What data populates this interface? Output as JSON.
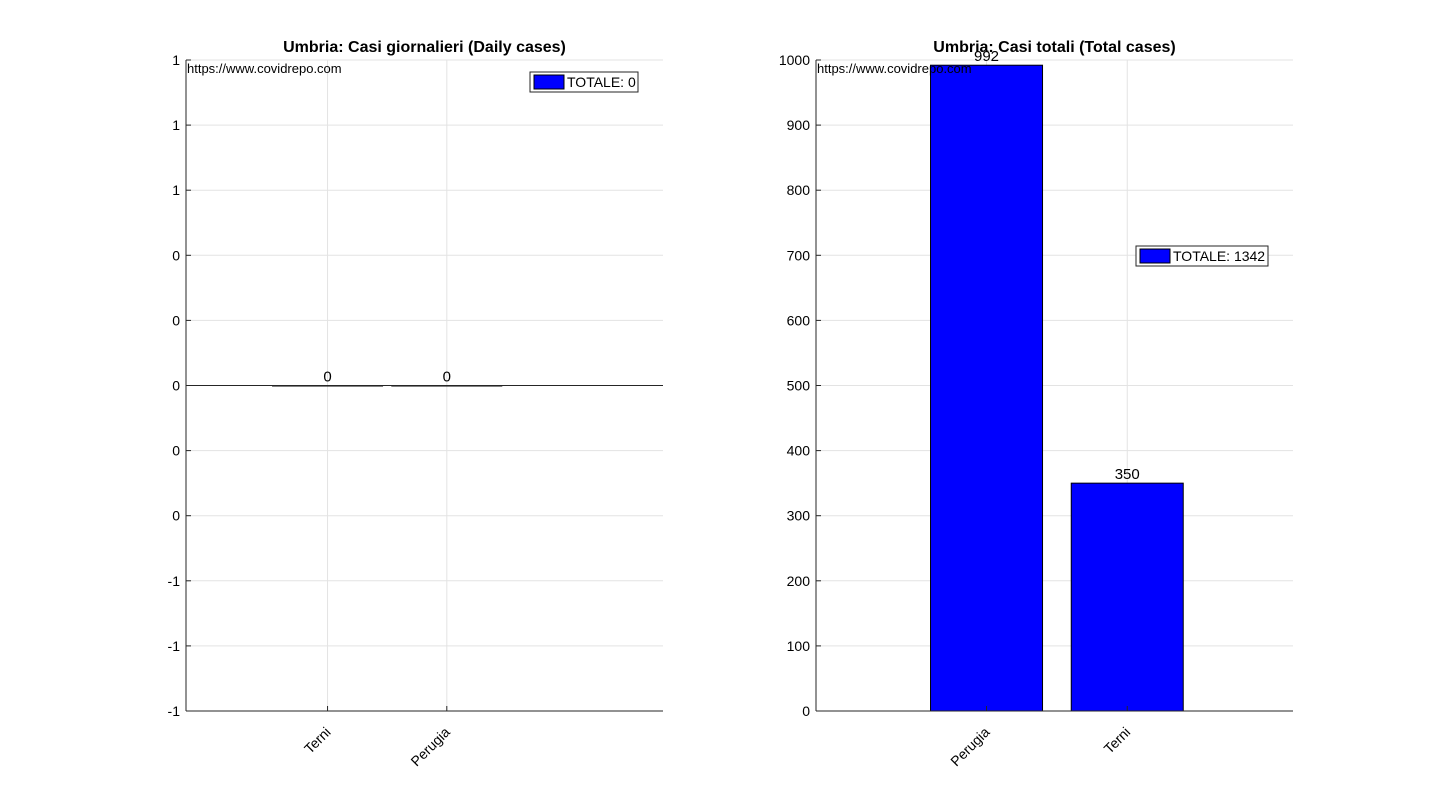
{
  "chart_data": [
    {
      "type": "bar",
      "title": "Umbria: Casi giornalieri (Daily cases)",
      "categories": [
        "Terni",
        "Perugia"
      ],
      "values": [
        0,
        0
      ],
      "data_labels": [
        "0",
        "0"
      ],
      "y_ticks": [
        -1,
        -0.8,
        -0.6,
        -0.4,
        -0.2,
        0,
        0.2,
        0.4,
        0.6,
        0.8,
        1
      ],
      "y_tick_labels": [
        "-1",
        "-1",
        "-1",
        "0",
        "0",
        "0",
        "0",
        "0",
        "1",
        "1",
        "1"
      ],
      "ylim": [
        -1,
        1
      ],
      "xlim": [
        0,
        4
      ],
      "x_positions": [
        1.187,
        2.187
      ],
      "grid": true,
      "legend": {
        "label": "TOTALE: 0",
        "placement": "top-right"
      },
      "watermark": "https://www.covidrepo.com",
      "bar_color": "#0000ff"
    },
    {
      "type": "bar",
      "title": "Umbria: Casi totali (Total cases)",
      "categories": [
        "Perugia",
        "Terni"
      ],
      "values": [
        992,
        350
      ],
      "data_labels": [
        "992",
        "350"
      ],
      "y_ticks": [
        0,
        100,
        200,
        300,
        400,
        500,
        600,
        700,
        800,
        900,
        1000
      ],
      "y_tick_labels": [
        "0",
        "100",
        "200",
        "300",
        "400",
        "500",
        "600",
        "700",
        "800",
        "900",
        "1000"
      ],
      "ylim": [
        0,
        1000
      ],
      "xlim": [
        0,
        4
      ],
      "x_positions": [
        1.43,
        2.61
      ],
      "grid": true,
      "legend": {
        "label": "TOTALE: 1342",
        "placement": "right"
      },
      "watermark": "https://www.covidrepo.com",
      "bar_color": "#0000ff"
    }
  ]
}
